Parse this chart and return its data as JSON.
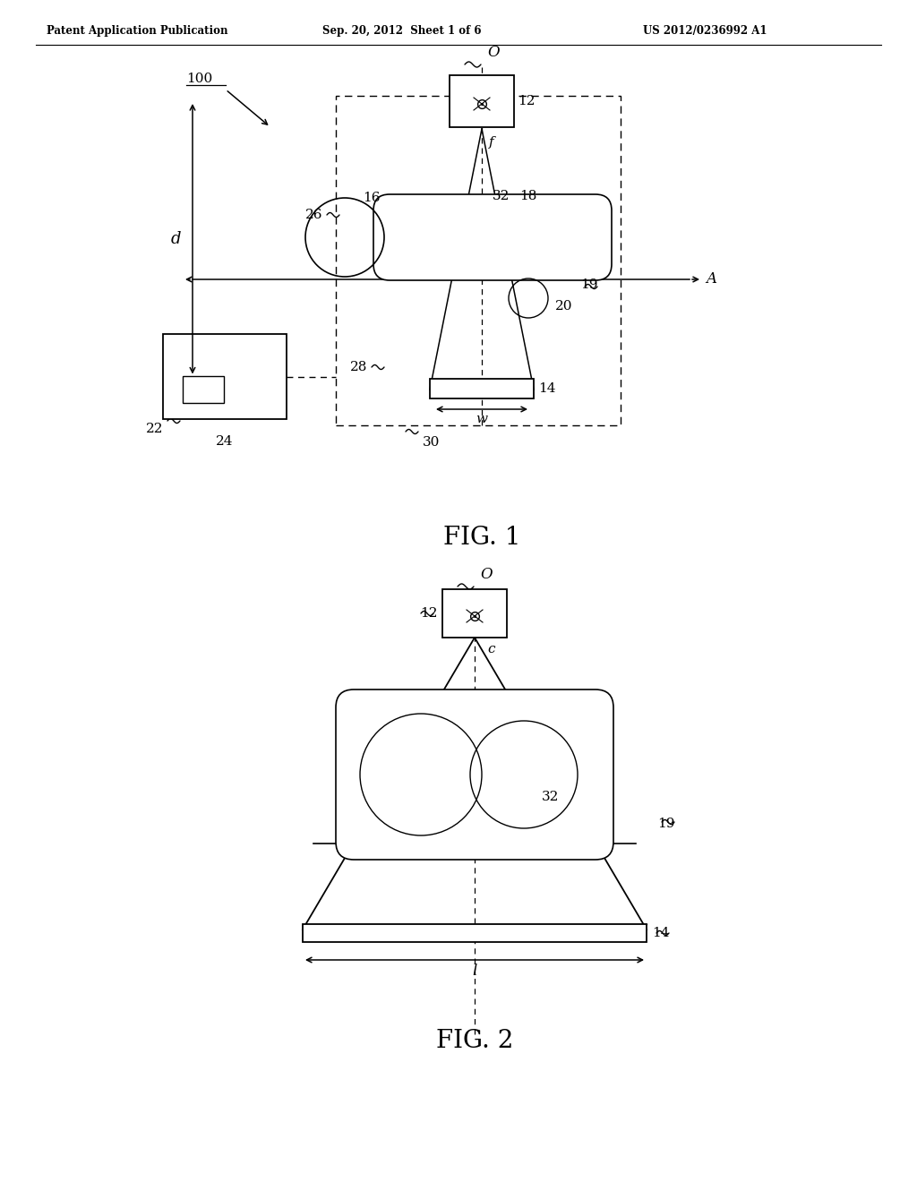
{
  "bg": "#ffffff",
  "header_left": "Patent Application Publication",
  "header_mid": "Sep. 20, 2012  Sheet 1 of 6",
  "header_right": "US 2012/0236992 A1",
  "fig1_caption": "FIG. 1",
  "fig2_caption": "FIG. 2",
  "lw_main": 1.3,
  "lw_thin": 1.0,
  "fs_label": 11,
  "fs_caption": 20,
  "fs_header": 8.5
}
